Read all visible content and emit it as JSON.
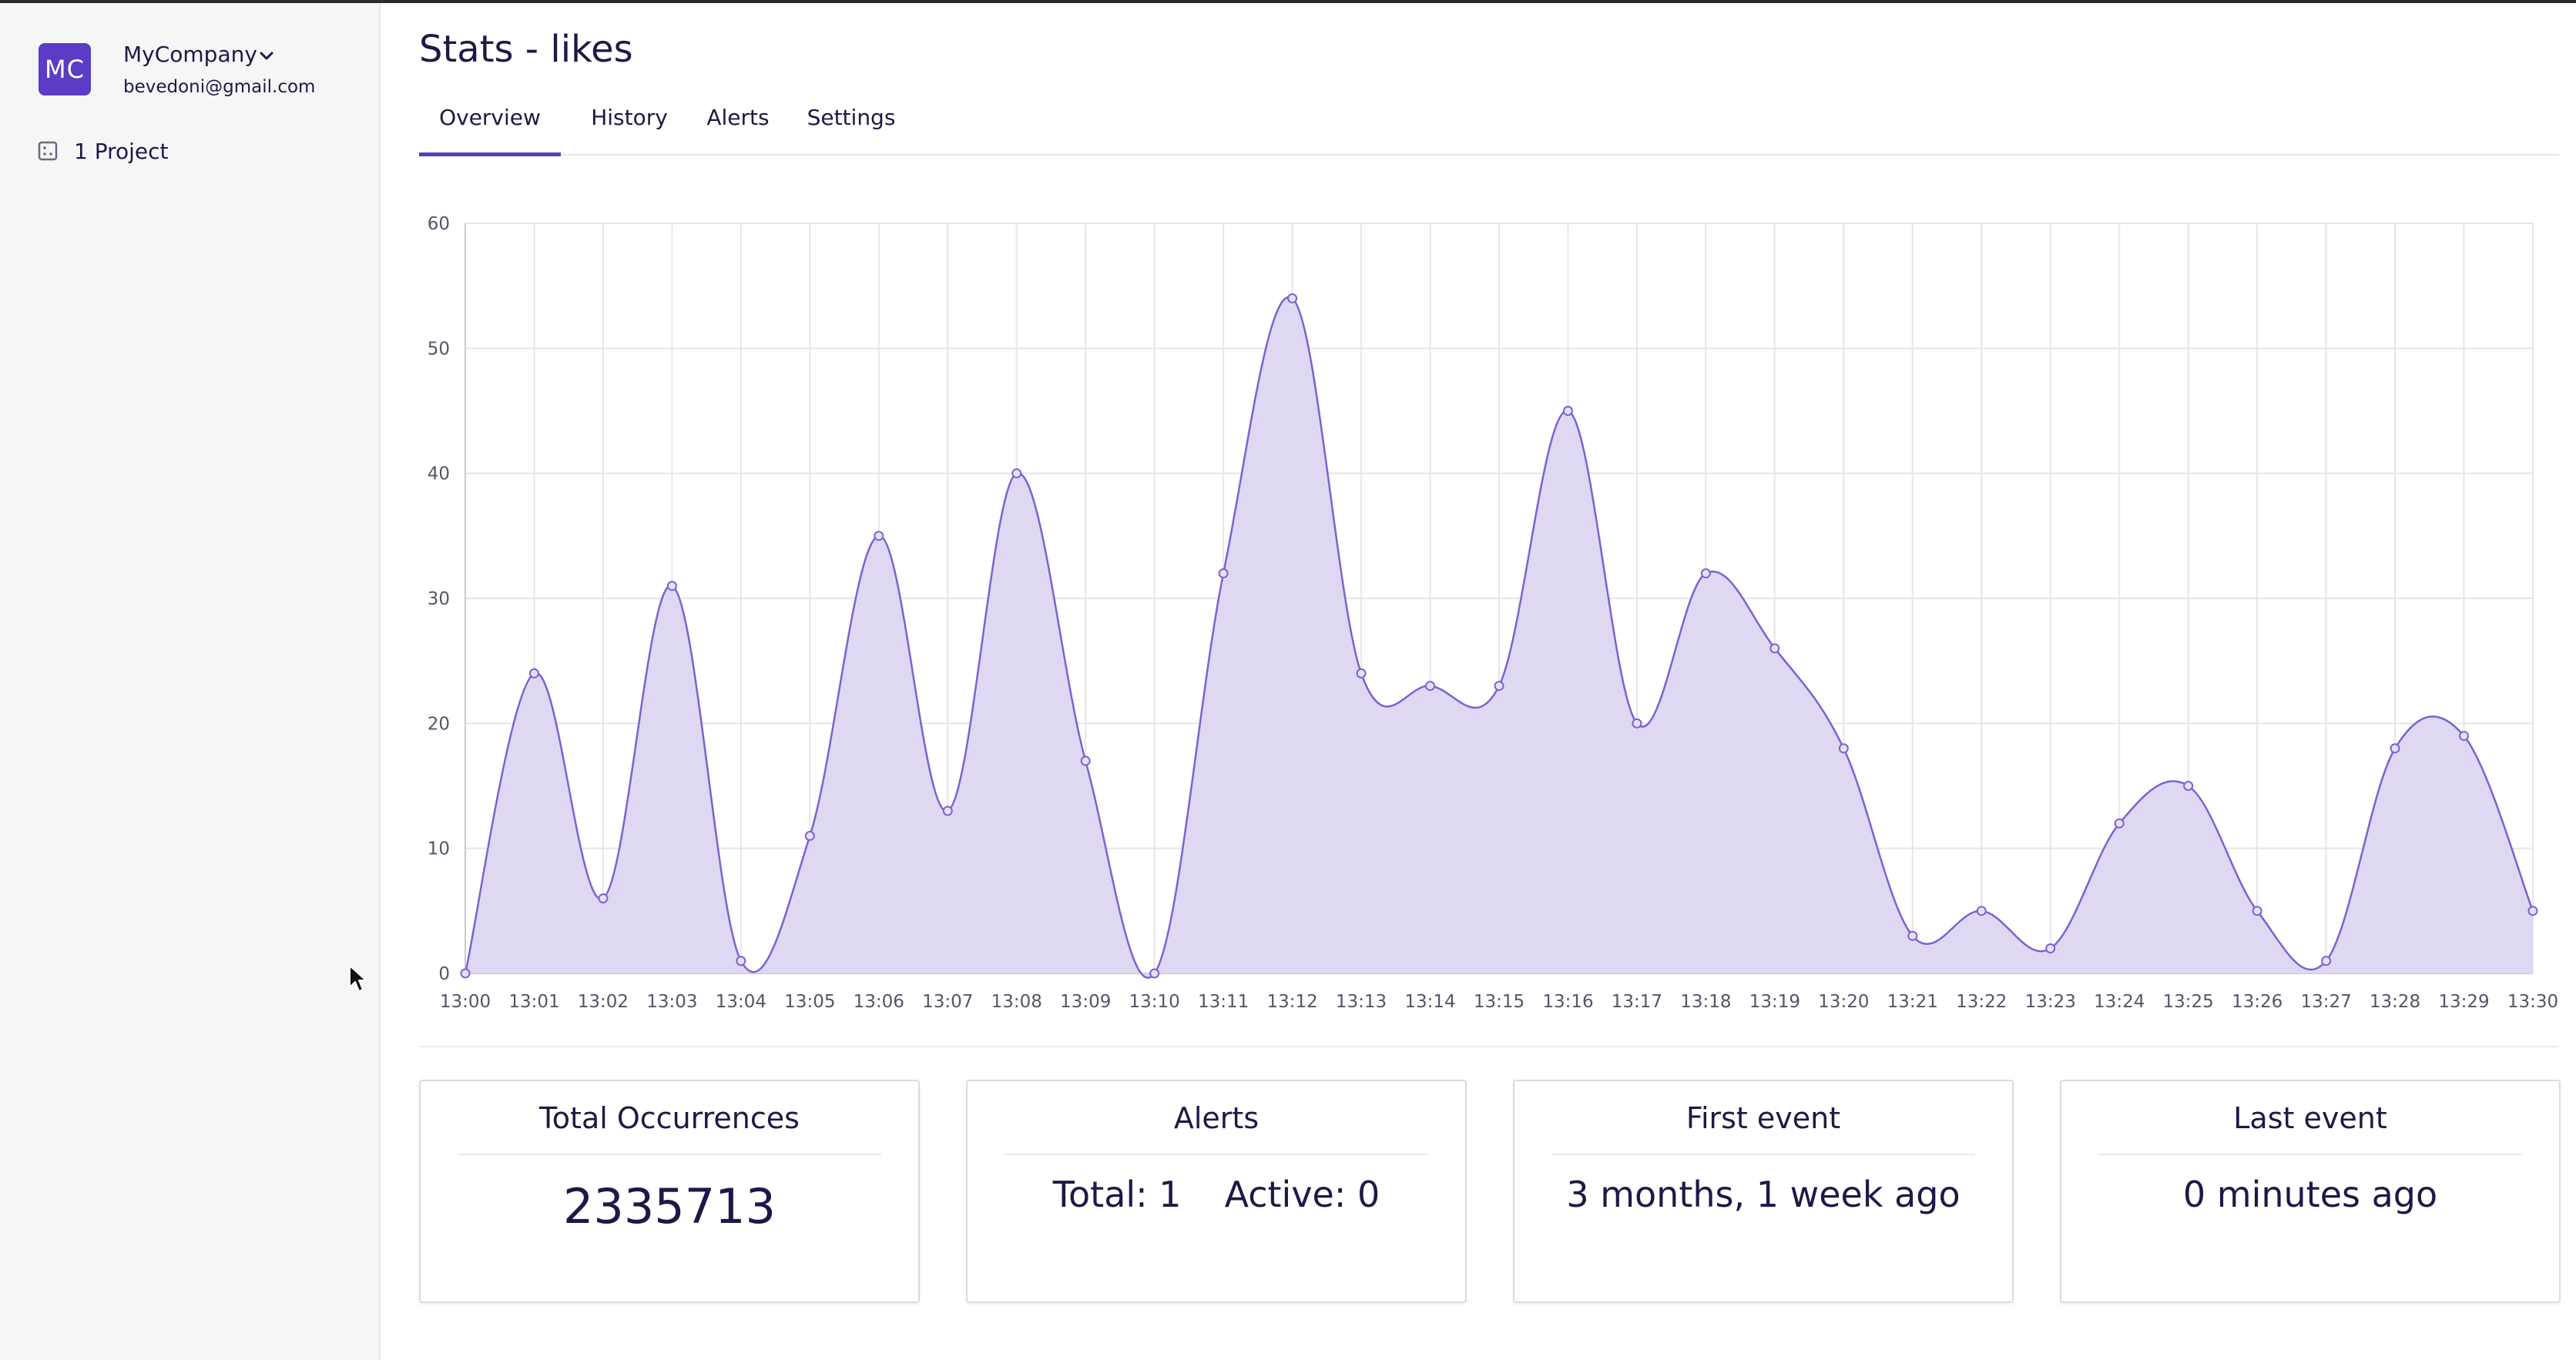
{
  "sidebar": {
    "org_initials": "MC",
    "org_name": "MyCompany",
    "email": "bevedoni@gmail.com",
    "projects_label": "1 Project"
  },
  "page": {
    "title": "Stats - likes",
    "tabs": [
      {
        "label": "Overview",
        "active": true
      },
      {
        "label": "History",
        "active": false
      },
      {
        "label": "Alerts",
        "active": false
      },
      {
        "label": "Settings",
        "active": false
      }
    ]
  },
  "colors": {
    "accent": "#5b3cc4",
    "line": "#7c62d2",
    "fill": "#ddd6f1",
    "grid": "#e6e6e9",
    "text": "#1f1846"
  },
  "chart_data": {
    "type": "area",
    "x": [
      "13:00",
      "13:01",
      "13:02",
      "13:03",
      "13:04",
      "13:05",
      "13:06",
      "13:07",
      "13:08",
      "13:09",
      "13:10",
      "13:11",
      "13:12",
      "13:13",
      "13:14",
      "13:15",
      "13:16",
      "13:17",
      "13:18",
      "13:19",
      "13:20",
      "13:21",
      "13:22",
      "13:23",
      "13:24",
      "13:25",
      "13:26",
      "13:27",
      "13:28",
      "13:29",
      "13:30"
    ],
    "values": [
      0,
      24,
      6,
      31,
      1,
      11,
      35,
      13,
      40,
      17,
      0,
      32,
      54,
      24,
      23,
      23,
      45,
      20,
      32,
      26,
      18,
      3,
      5,
      2,
      12,
      15,
      5,
      1,
      18,
      19,
      5
    ],
    "yticks": [
      0,
      10,
      20,
      30,
      40,
      50,
      60
    ],
    "ylim": [
      0,
      60
    ],
    "grid": true,
    "title": "",
    "xlabel": "",
    "ylabel": ""
  },
  "cards": {
    "total": {
      "title": "Total Occurrences",
      "value": "2335713"
    },
    "alerts": {
      "title": "Alerts",
      "total": "Total: 1",
      "active": "Active: 0"
    },
    "first": {
      "title": "First event",
      "value": "3 months, 1 week ago"
    },
    "last": {
      "title": "Last event",
      "value": "0 minutes ago"
    }
  }
}
